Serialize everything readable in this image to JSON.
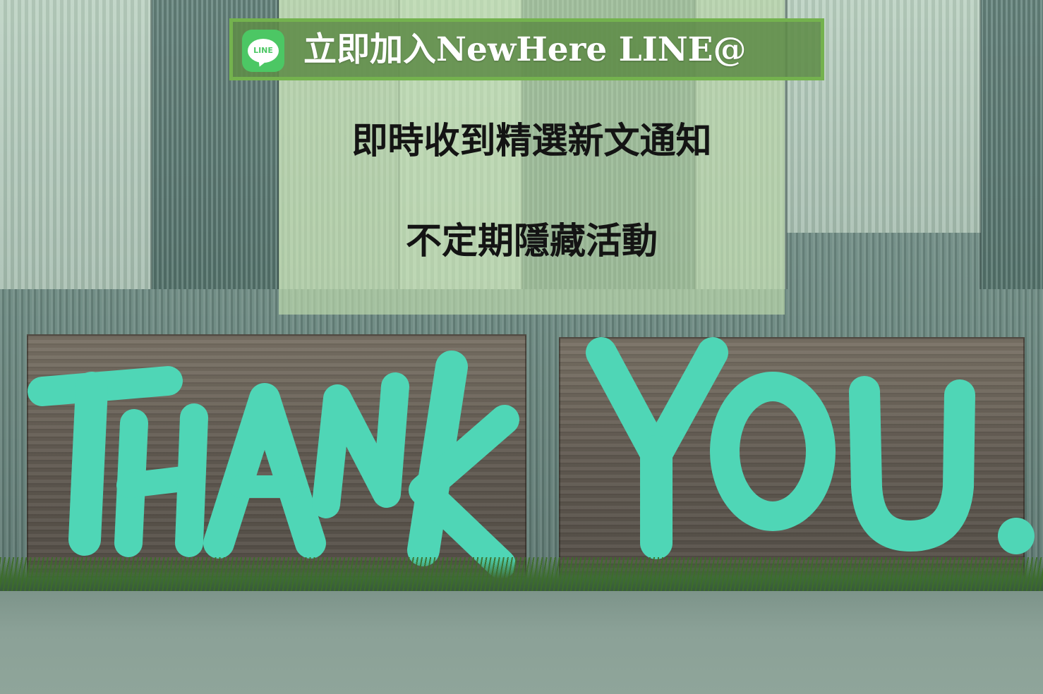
{
  "banner": {
    "logo_text": "LINE",
    "label": "立即加入NewHere LINE@"
  },
  "lines": [
    "即時收到精選新文通知",
    "不定期隱藏活動"
  ],
  "painted_sign": {
    "left_board": "THANK",
    "right_board": "YOU."
  },
  "colors": {
    "paint": "#4fd6b6",
    "line_green": "#4cc764",
    "banner_border": "#74b24e",
    "banner_fill": "#5e8c48",
    "overlay_panel": "#c4e0b0"
  }
}
